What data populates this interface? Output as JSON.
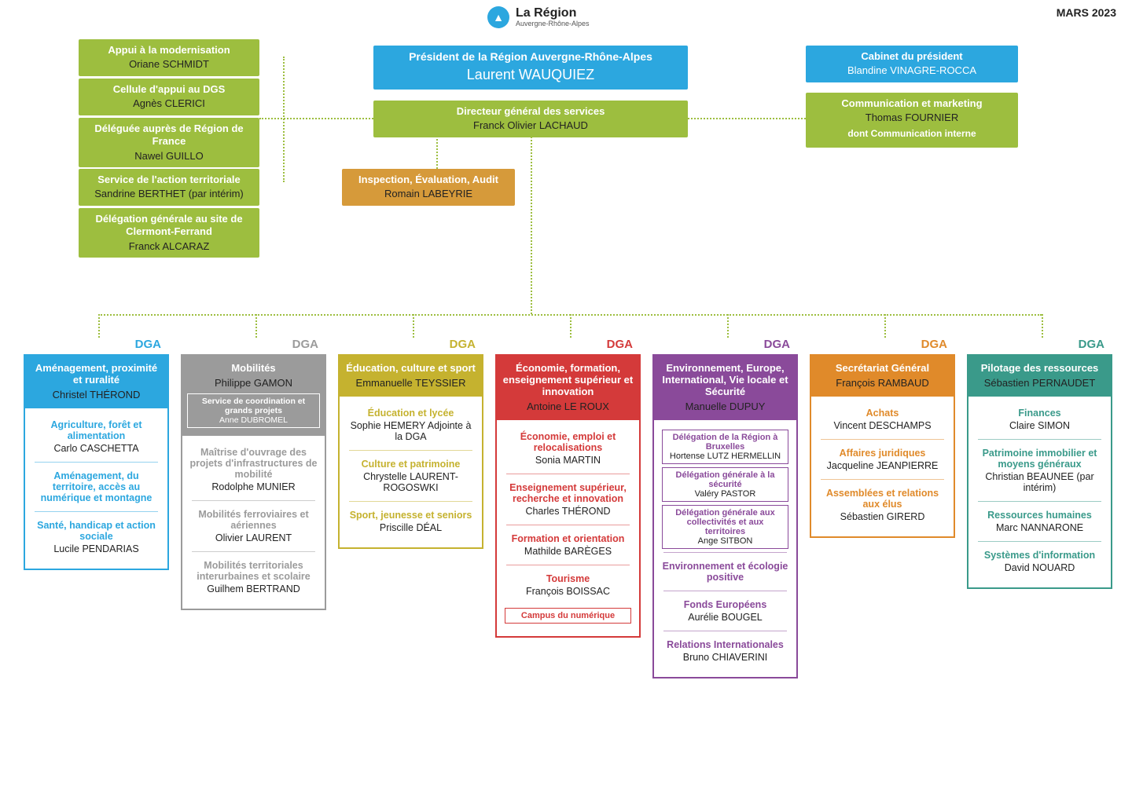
{
  "meta": {
    "date": "MARS 2023",
    "logo_title": "La Région",
    "logo_sub": "Auvergne-Rhône-Alpes"
  },
  "colors": {
    "green": "#9dbe3f",
    "blue": "#2ca7df",
    "orange": "#d69a3a",
    "dga": [
      "#2ca7df",
      "#9b9b9b",
      "#c5b22f",
      "#d43a3a",
      "#8a4a9a",
      "#e08a2a",
      "#3a9a8a"
    ]
  },
  "left": [
    {
      "title": "Appui à la modernisation",
      "name": "Oriane SCHMIDT"
    },
    {
      "title": "Cellule d'appui au DGS",
      "name": "Agnès CLERICI"
    },
    {
      "title": "Déléguée auprès de Région de France",
      "name": "Nawel GUILLO"
    },
    {
      "title": "Service de l'action territoriale",
      "name": "Sandrine BERTHET (par intérim)"
    },
    {
      "title": "Délégation générale au site de Clermont-Ferrand",
      "name": "Franck ALCARAZ"
    }
  ],
  "president": {
    "title": "Président de la Région Auvergne-Rhône-Alpes",
    "name": "Laurent WAUQUIEZ"
  },
  "dgs": {
    "title": "Directeur général des services",
    "name": "Franck Olivier LACHAUD"
  },
  "iea": {
    "title": "Inspection, Évaluation, Audit",
    "name": "Romain LABEYRIE"
  },
  "cabinet": {
    "title": "Cabinet du président",
    "name": "Blandine VINAGRE-ROCCA"
  },
  "comm": {
    "title": "Communication et marketing",
    "name": "Thomas FOURNIER",
    "sub": "dont Communication interne"
  },
  "dga_label": "DGA",
  "dga": [
    {
      "title": "Aménagement, proximité et ruralité",
      "name": "Christel THÉROND",
      "depts": [
        {
          "t": "Agriculture, forêt et alimentation",
          "n": "Carlo CASCHETTA"
        },
        {
          "t": "Aménagement, du territoire, accès au numérique et montagne",
          "n": ""
        },
        {
          "t": "Santé, handicap et action sociale",
          "n": "Lucile PENDARIAS"
        }
      ]
    },
    {
      "title": "Mobilités",
      "name": "Philippe GAMON",
      "head_sub": {
        "t": "Service de coordination et grands projets",
        "n": "Anne DUBROMEL"
      },
      "depts": [
        {
          "t": "Maîtrise d'ouvrage des projets d'infrastructures de mobilité",
          "n": "Rodolphe MUNIER"
        },
        {
          "t": "Mobilités ferroviaires et aériennes",
          "n": "Olivier LAURENT"
        },
        {
          "t": "Mobilités territoriales interurbaines et scolaire",
          "n": "Guilhem BERTRAND"
        }
      ]
    },
    {
      "title": "Éducation, culture et sport",
      "name": "Emmanuelle TEYSSIER",
      "depts": [
        {
          "t": "Éducation et lycée",
          "n": "Sophie HEMERY Adjointe à la DGA"
        },
        {
          "t": "Culture et patrimoine",
          "n": "Chrystelle LAURENT-ROGOSWKI"
        },
        {
          "t": "Sport, jeunesse et seniors",
          "n": "Priscille DÉAL"
        }
      ]
    },
    {
      "title": "Économie, formation, enseignement supérieur et innovation",
      "name": "Antoine LE ROUX",
      "depts": [
        {
          "t": "Économie, emploi et relocalisations",
          "n": "Sonia MARTIN"
        },
        {
          "t": "Enseignement supérieur, recherche et innovation",
          "n": "Charles THÉROND"
        },
        {
          "t": "Formation et orientation",
          "n": "Mathilde BARÈGES"
        },
        {
          "t": "Tourisme",
          "n": "François BOISSAC"
        }
      ],
      "tail_box": "Campus du numérique"
    },
    {
      "title": "Environnement, Europe, International, Vie locale et Sécurité",
      "name": "Manuelle DUPUY",
      "sub_boxes": [
        {
          "t": "Délégation de la Région à Bruxelles",
          "n": "Hortense LUTZ HERMELLIN"
        },
        {
          "t": "Délégation générale à la sécurité",
          "n": "Valéry PASTOR"
        },
        {
          "t": "Délégation générale aux collectivités et aux territoires",
          "n": "Ange SITBON"
        }
      ],
      "depts": [
        {
          "t": "Environnement et écologie positive",
          "n": ""
        },
        {
          "t": "Fonds Européens",
          "n": "Aurélie BOUGEL"
        },
        {
          "t": "Relations Internationales",
          "n": "Bruno CHIAVERINI"
        }
      ]
    },
    {
      "title": "Secrétariat Général",
      "name": "François RAMBAUD",
      "depts": [
        {
          "t": "Achats",
          "n": "Vincent DESCHAMPS"
        },
        {
          "t": "Affaires juridiques",
          "n": "Jacqueline JEANPIERRE"
        },
        {
          "t": "Assemblées et relations aux élus",
          "n": "Sébastien GIRERD"
        }
      ]
    },
    {
      "title": "Pilotage des ressources",
      "name": "Sébastien PERNAUDET",
      "depts": [
        {
          "t": "Finances",
          "n": "Claire SIMON"
        },
        {
          "t": "Patrimoine immobilier et moyens généraux",
          "n": "Christian BEAUNEE (par intérim)"
        },
        {
          "t": "Ressources humaines",
          "n": "Marc NANNARONE"
        },
        {
          "t": "Systèmes d'information",
          "n": "David NOUARD"
        }
      ]
    }
  ]
}
